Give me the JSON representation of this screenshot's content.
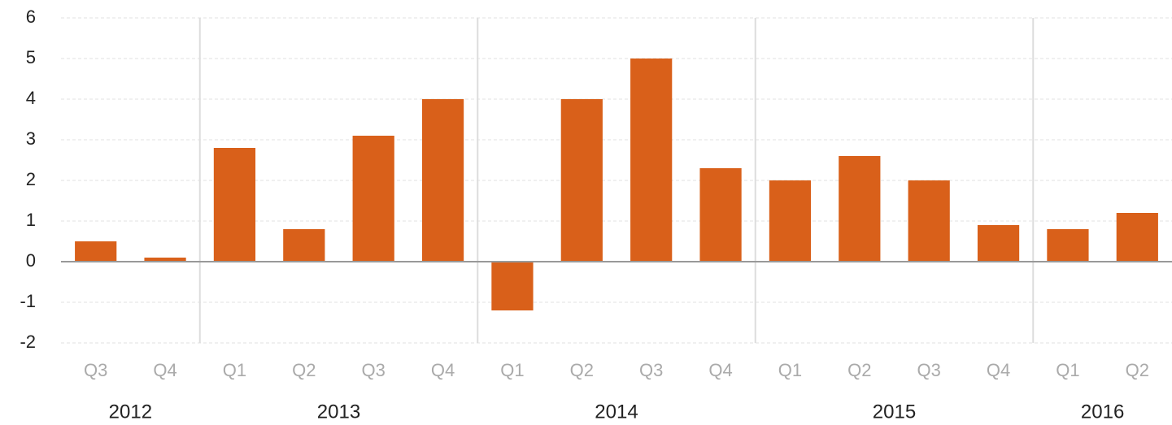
{
  "chart_data": {
    "type": "bar",
    "groups": [
      {
        "label": "2012",
        "categories": [
          "Q3",
          "Q4"
        ]
      },
      {
        "label": "2013",
        "categories": [
          "Q1",
          "Q2",
          "Q3",
          "Q4"
        ]
      },
      {
        "label": "2014",
        "categories": [
          "Q1",
          "Q2",
          "Q3",
          "Q4"
        ]
      },
      {
        "label": "2015",
        "categories": [
          "Q1",
          "Q2",
          "Q3",
          "Q4"
        ]
      },
      {
        "label": "2016",
        "categories": [
          "Q1",
          "Q2"
        ]
      }
    ],
    "values": [
      0.5,
      0.1,
      2.8,
      0.8,
      3.1,
      4.0,
      -1.2,
      4.0,
      5.0,
      2.3,
      2.0,
      2.6,
      2.0,
      0.9,
      0.8,
      1.2
    ],
    "color": "#d9601a",
    "ylim": [
      -2,
      6
    ],
    "yticks": [
      -2,
      -1,
      0,
      1,
      2,
      3,
      4,
      5,
      6
    ],
    "grid": true
  }
}
